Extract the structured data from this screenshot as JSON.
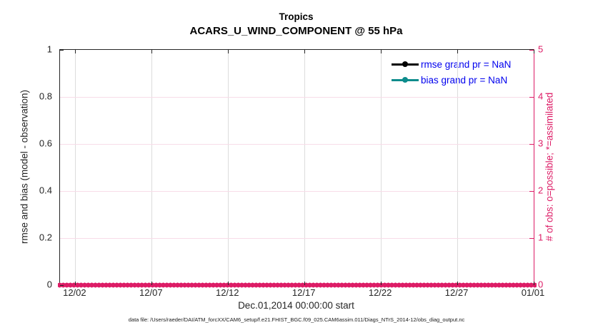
{
  "title": {
    "line1": "Tropics",
    "line2": "ACARS_U_WIND_COMPONENT @ 55 hPa"
  },
  "colors": {
    "pink": "#DD1C66",
    "pink_grid": "#F8DCE8",
    "gray_grid": "#DCDCDC",
    "axis_dark": "#262626",
    "legend_text_blue": "#0000EE",
    "rmse_black": "#000000",
    "bias_teal": "#0D8C8C"
  },
  "axes": {
    "x": {
      "label": "Dec.01,2014 00:00:00 start",
      "ticks": [
        {
          "label": "12/02",
          "pct": 3.226
        },
        {
          "label": "12/07",
          "pct": 19.355
        },
        {
          "label": "12/12",
          "pct": 35.484
        },
        {
          "label": "12/17",
          "pct": 51.613
        },
        {
          "label": "12/22",
          "pct": 67.742
        },
        {
          "label": "12/27",
          "pct": 83.871
        },
        {
          "label": "01/01",
          "pct": 100
        }
      ]
    },
    "left": {
      "label": "rmse and bias (model - observation)",
      "ticks": [
        {
          "label": "0",
          "pct": 0
        },
        {
          "label": "0.2",
          "pct": 20
        },
        {
          "label": "0.4",
          "pct": 40
        },
        {
          "label": "0.6",
          "pct": 60
        },
        {
          "label": "0.8",
          "pct": 80
        },
        {
          "label": "1",
          "pct": 100
        }
      ]
    },
    "right": {
      "label": "# of obs: o=possible; *=assimilated",
      "ticks": [
        {
          "label": "0",
          "pct": 0
        },
        {
          "label": "1",
          "pct": 20
        },
        {
          "label": "2",
          "pct": 40
        },
        {
          "label": "3",
          "pct": 60
        },
        {
          "label": "4",
          "pct": 80
        },
        {
          "label": "5",
          "pct": 100
        }
      ]
    }
  },
  "legend": {
    "entries": [
      {
        "label": "rmse grand pr = NaN",
        "color": "#000000"
      },
      {
        "label": "bias grand pr = NaN",
        "color": "#0D8C8C"
      }
    ]
  },
  "footnote": "data file: /Users/raeder/DAI/ATM_forcXX/CAM6_setup/f.e21.FHIST_BGC.f09_025.CAM6assim.011/Diags_NTrS_2014-12/obs_diag_output.nc",
  "chart_data": {
    "type": "line",
    "title": "Tropics",
    "subtitle": "ACARS_U_WIND_COMPONENT @ 55 hPa",
    "xlabel": "Dec.01,2014 00:00:00 start",
    "x_range": [
      "2014-12-01",
      "2015-01-01"
    ],
    "x_tick_labels": [
      "12/02",
      "12/07",
      "12/12",
      "12/17",
      "12/22",
      "12/27",
      "01/01"
    ],
    "y_left": {
      "label": "rmse and bias (model - observation)",
      "range": [
        0,
        1
      ],
      "tick_values": [
        0,
        0.2,
        0.4,
        0.6,
        0.8,
        1
      ]
    },
    "y_right": {
      "label": "# of obs: o=possible; *=assimilated",
      "range": [
        0,
        5
      ],
      "tick_values": [
        0,
        1,
        2,
        3,
        4,
        5
      ]
    },
    "grid": true,
    "legend_position": "upper-right-inside, no frame",
    "series": [
      {
        "name": "rmse grand pr = NaN",
        "axis": "left",
        "color": "#000000",
        "marker": "filled-circle",
        "values": "NaN (no line drawn; grand-average rmse is NaN)"
      },
      {
        "name": "bias grand pr = NaN",
        "axis": "left",
        "color": "#0D8C8C",
        "marker": "filled-circle",
        "values": "NaN (no line drawn; grand-average bias is NaN)"
      },
      {
        "name": "# of obs possible (o)",
        "axis": "right",
        "color": "#DD1C66",
        "marker": "o",
        "values": "0 at every assimilation time from 12/01 through 01/01 (dense marker band along y=0)"
      },
      {
        "name": "# of obs assimilated (*)",
        "axis": "right",
        "color": "#DD1C66",
        "marker": "*",
        "values": "0 at every assimilation time from 12/01 through 01/01 (dense marker band along y=0)"
      }
    ]
  }
}
